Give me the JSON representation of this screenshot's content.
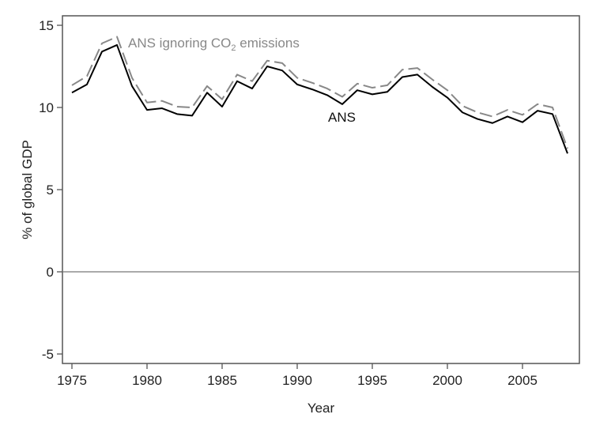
{
  "chart_data": {
    "type": "line",
    "title": "",
    "xlabel": "Year",
    "ylabel": "% of global GDP",
    "xlim": [
      1973.4,
      2009.6
    ],
    "ylim": [
      -5.6,
      15.6
    ],
    "xticks": [
      1975,
      1980,
      1985,
      1990,
      1995,
      2000,
      2005
    ],
    "yticks": [
      -5,
      0,
      5,
      10,
      15
    ],
    "grid": false,
    "reference_line_y": 0,
    "x": [
      1975,
      1976,
      1977,
      1978,
      1979,
      1980,
      1981,
      1982,
      1983,
      1984,
      1985,
      1986,
      1987,
      1988,
      1989,
      1990,
      1991,
      1992,
      1993,
      1994,
      1995,
      1996,
      1997,
      1998,
      1999,
      2000,
      2001,
      2002,
      2003,
      2004,
      2005,
      2006,
      2007,
      2008
    ],
    "series": [
      {
        "name": "ANS",
        "color": "#000000",
        "style": "solid",
        "values": [
          10.9,
          11.4,
          13.4,
          13.8,
          11.3,
          9.85,
          9.95,
          9.6,
          9.5,
          10.9,
          10.05,
          11.6,
          11.15,
          12.5,
          12.25,
          11.4,
          11.1,
          10.75,
          10.2,
          11.05,
          10.8,
          10.95,
          11.85,
          12.0,
          11.25,
          10.6,
          9.7,
          9.3,
          9.05,
          9.45,
          9.1,
          9.8,
          9.6,
          7.2
        ]
      },
      {
        "name": "ANS ignoring CO₂ emissions",
        "color": "#888888",
        "style": "dashed",
        "values": [
          11.35,
          11.9,
          13.9,
          14.3,
          11.8,
          10.3,
          10.4,
          10.05,
          10.0,
          11.3,
          10.5,
          12.0,
          11.6,
          12.85,
          12.7,
          11.8,
          11.5,
          11.15,
          10.65,
          11.45,
          11.2,
          11.35,
          12.3,
          12.4,
          11.7,
          11.05,
          10.1,
          9.7,
          9.45,
          9.85,
          9.55,
          10.2,
          10.0,
          7.5
        ]
      }
    ],
    "annotations": {
      "ans_label": "ANS",
      "ignoring_label_pre": "ANS ignoring CO",
      "ignoring_label_sub": "2",
      "ignoring_label_post": " emissions"
    }
  }
}
